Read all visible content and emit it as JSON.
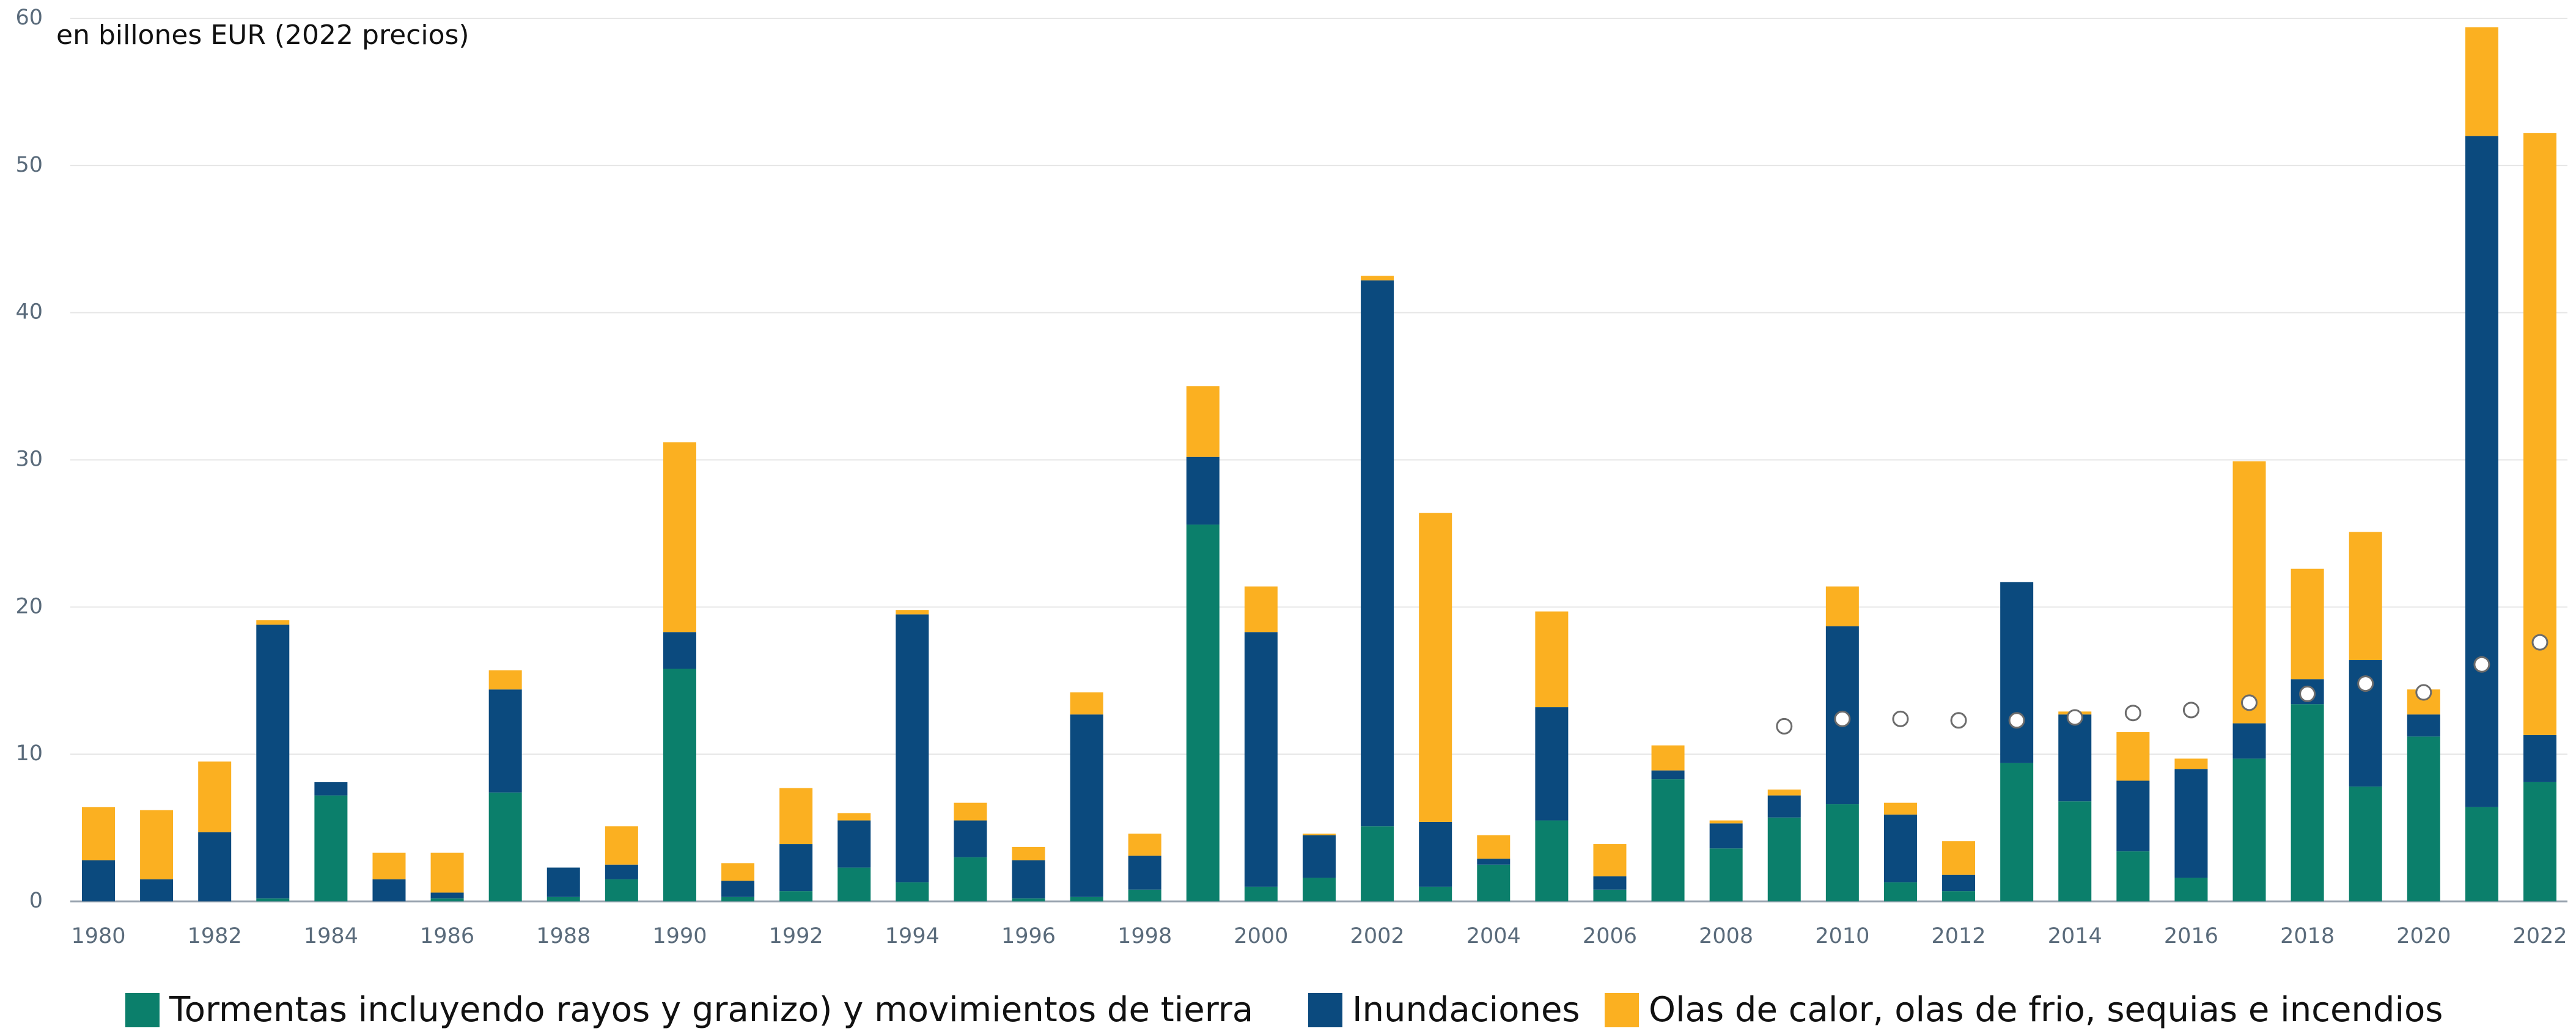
{
  "chart_data": {
    "type": "bar",
    "stacked": true,
    "annotation": "en billones EUR (2022 precios)",
    "categories": [
      "1980",
      null,
      "1982",
      null,
      "1984",
      null,
      "1986",
      null,
      "1988",
      null,
      "1990",
      null,
      "1992",
      null,
      "1994",
      null,
      "1996",
      null,
      "1998",
      null,
      "2000",
      null,
      "2002",
      null,
      "2004",
      null,
      "2006",
      null,
      "2008",
      null,
      "2010",
      null,
      "2012",
      null,
      "2014",
      null,
      "2016",
      null,
      "2018",
      null,
      "2020",
      null,
      "2022"
    ],
    "series": [
      {
        "name": "Tormentas incluyendo rayos y granizo) y movimientos de tierra",
        "color": "#0b7f6b",
        "values": [
          0,
          0,
          0,
          0.2,
          7.2,
          0,
          0.2,
          7.4,
          0.3,
          1.5,
          15.8,
          0.3,
          0.7,
          2.3,
          1.3,
          3.0,
          0.2,
          0.3,
          0.8,
          25.6,
          1.0,
          1.6,
          5.1,
          1.0,
          2.5,
          5.5,
          0.8,
          8.3,
          3.6,
          5.7,
          6.6,
          1.3,
          0.7,
          9.4,
          6.8,
          3.4,
          1.6,
          9.7,
          13.4,
          7.8,
          11.2,
          6.4,
          8.1
        ]
      },
      {
        "name": "Inundaciones",
        "color": "#0b4a7e",
        "values": [
          2.8,
          1.5,
          4.7,
          18.6,
          0.9,
          1.5,
          0.4,
          7.0,
          2.0,
          1.0,
          2.5,
          1.1,
          3.2,
          3.2,
          18.2,
          2.5,
          2.6,
          12.4,
          2.3,
          4.6,
          17.3,
          2.9,
          37.1,
          4.4,
          0.4,
          7.7,
          0.9,
          0.6,
          1.7,
          1.5,
          12.1,
          4.6,
          1.1,
          12.3,
          5.9,
          4.8,
          7.4,
          2.4,
          1.7,
          8.6,
          1.5,
          45.6,
          3.2
        ]
      },
      {
        "name": "Olas de calor, olas de frio, sequias e incendios",
        "color": "#fbb021",
        "values": [
          3.6,
          4.7,
          4.8,
          0.3,
          0,
          1.8,
          2.7,
          1.3,
          0,
          2.6,
          12.9,
          1.2,
          3.8,
          0.5,
          0.3,
          1.2,
          0.9,
          1.5,
          1.5,
          4.8,
          3.1,
          0.1,
          0.3,
          21.0,
          1.6,
          6.5,
          2.2,
          1.7,
          0.2,
          0.4,
          2.7,
          0.8,
          2.3,
          0,
          0.2,
          3.3,
          0.7,
          17.8,
          7.5,
          8.7,
          1.7,
          7.4,
          40.9
        ]
      }
    ],
    "points": {
      "color": "#ffffff",
      "values": [
        null,
        null,
        null,
        null,
        null,
        null,
        null,
        null,
        null,
        null,
        null,
        null,
        null,
        null,
        null,
        null,
        null,
        null,
        null,
        null,
        null,
        null,
        null,
        null,
        null,
        null,
        null,
        null,
        null,
        11.9,
        12.4,
        12.4,
        12.3,
        12.3,
        12.5,
        12.8,
        13.0,
        13.5,
        14.1,
        14.8,
        14.2,
        16.1,
        17.6
      ]
    },
    "ylim": [
      0,
      60
    ],
    "yticks": [
      0,
      10,
      20,
      30,
      40,
      50,
      60
    ],
    "grid": true,
    "legend": "bottom"
  }
}
